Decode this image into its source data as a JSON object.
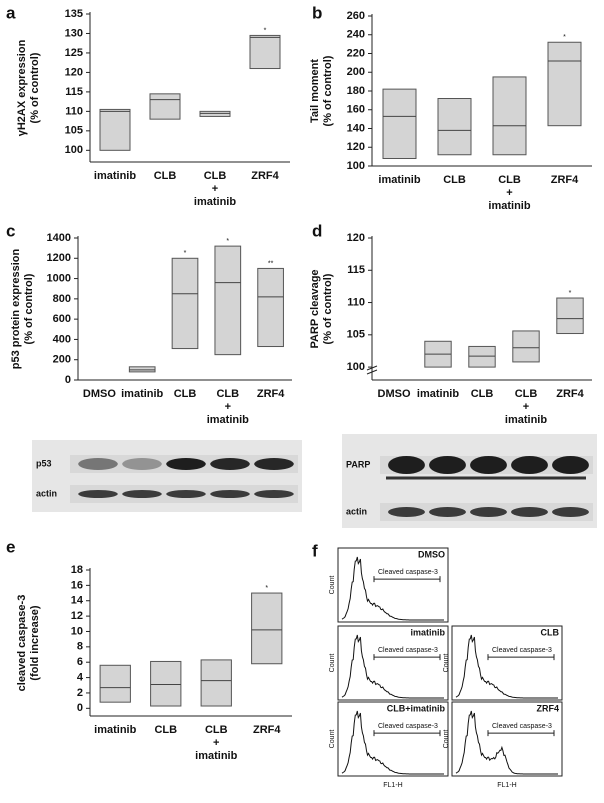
{
  "chart_data": [
    {
      "type": "box",
      "panel": "a",
      "ylabel": [
        "γH2AX expression",
        "(% of control)"
      ],
      "categories": [
        [
          "imatinib"
        ],
        [
          "CLB"
        ],
        [
          "CLB",
          "+",
          "imatinib"
        ],
        [
          "ZRF4"
        ]
      ],
      "low": [
        100,
        108,
        108.7,
        121
      ],
      "median": [
        110,
        113,
        109.5,
        129
      ],
      "high": [
        110.5,
        114.5,
        110,
        129.5
      ],
      "annotations": [
        null,
        null,
        null,
        "*"
      ],
      "color": "#d4d4d4",
      "ylim": [
        97,
        135
      ],
      "yticks": [
        100,
        105,
        110,
        115,
        120,
        125,
        130,
        135
      ]
    },
    {
      "type": "box",
      "panel": "b",
      "ylabel": [
        "Tail moment",
        "(% of control)"
      ],
      "categories": [
        [
          "imatinib"
        ],
        [
          "CLB"
        ],
        [
          "CLB",
          "+",
          "imatinib"
        ],
        [
          "ZRF4"
        ]
      ],
      "low": [
        108,
        112,
        112,
        143
      ],
      "median": [
        153,
        138,
        143,
        212
      ],
      "high": [
        182,
        172,
        195,
        232
      ],
      "annotations": [
        null,
        null,
        null,
        "*"
      ],
      "color": "#d4d4d4",
      "ylim": [
        100,
        260
      ],
      "yticks": [
        100,
        120,
        140,
        160,
        180,
        200,
        220,
        240,
        260
      ]
    },
    {
      "type": "box",
      "panel": "c",
      "ylabel": [
        "p53 protein expression",
        "(% of control)"
      ],
      "categories": [
        [
          "DMSO"
        ],
        [
          "imatinib"
        ],
        [
          "CLB"
        ],
        [
          "CLB",
          "+",
          "imatinib"
        ],
        [
          "ZRF4"
        ]
      ],
      "low": [
        null,
        80,
        310,
        250,
        330
      ],
      "median": [
        null,
        100,
        850,
        960,
        820
      ],
      "high": [
        null,
        130,
        1200,
        1320,
        1100
      ],
      "annotations": [
        null,
        null,
        "*",
        "*",
        "**"
      ],
      "color": "#d4d4d4",
      "ylim": [
        0,
        1400
      ],
      "yticks": [
        0,
        200,
        400,
        600,
        800,
        1000,
        1200,
        1400
      ]
    },
    {
      "type": "box",
      "panel": "d",
      "ylabel": [
        "PARP cleavage",
        "(% of control)"
      ],
      "categories": [
        [
          "DMSO"
        ],
        [
          "imatinib"
        ],
        [
          "CLB"
        ],
        [
          "CLB",
          "+",
          "imatinib"
        ],
        [
          "ZRF4"
        ]
      ],
      "low": [
        null,
        100,
        100,
        100.8,
        105.2
      ],
      "median": [
        null,
        102,
        101.7,
        103,
        107.5
      ],
      "high": [
        null,
        104,
        103.2,
        105.6,
        110.7
      ],
      "annotations": [
        null,
        null,
        null,
        null,
        "*"
      ],
      "color": "#d4d4d4",
      "axis_break": true,
      "ylim": [
        98,
        120
      ],
      "yticks": [
        100,
        105,
        110,
        115,
        120
      ]
    },
    {
      "type": "box",
      "panel": "e",
      "ylabel": [
        "cleaved caspase-3",
        "(fold increase)"
      ],
      "categories": [
        [
          "imatinib"
        ],
        [
          "CLB"
        ],
        [
          "CLB",
          "+",
          "imatinib"
        ],
        [
          "ZRF4"
        ]
      ],
      "low": [
        0.8,
        0.3,
        0.3,
        5.8
      ],
      "median": [
        2.7,
        3.1,
        3.6,
        10.2
      ],
      "high": [
        5.6,
        6.1,
        6.3,
        15
      ],
      "annotations": [
        null,
        null,
        null,
        "*"
      ],
      "color": "#d4d4d4",
      "ylim": [
        -1,
        18
      ],
      "yticks": [
        0,
        2,
        4,
        6,
        8,
        10,
        12,
        14,
        16,
        18
      ]
    }
  ],
  "blots": {
    "c": [
      "p53",
      "actin"
    ],
    "d": [
      "PARP",
      "actin"
    ]
  },
  "flow": {
    "panel": "f",
    "conditions": [
      "DMSO",
      "imatinib",
      "CLB",
      "CLB+imatinib",
      "ZRF4"
    ],
    "gate_label": "Cleaved caspase-3",
    "ylabel": "Count",
    "xlabel": "FL1-H"
  }
}
